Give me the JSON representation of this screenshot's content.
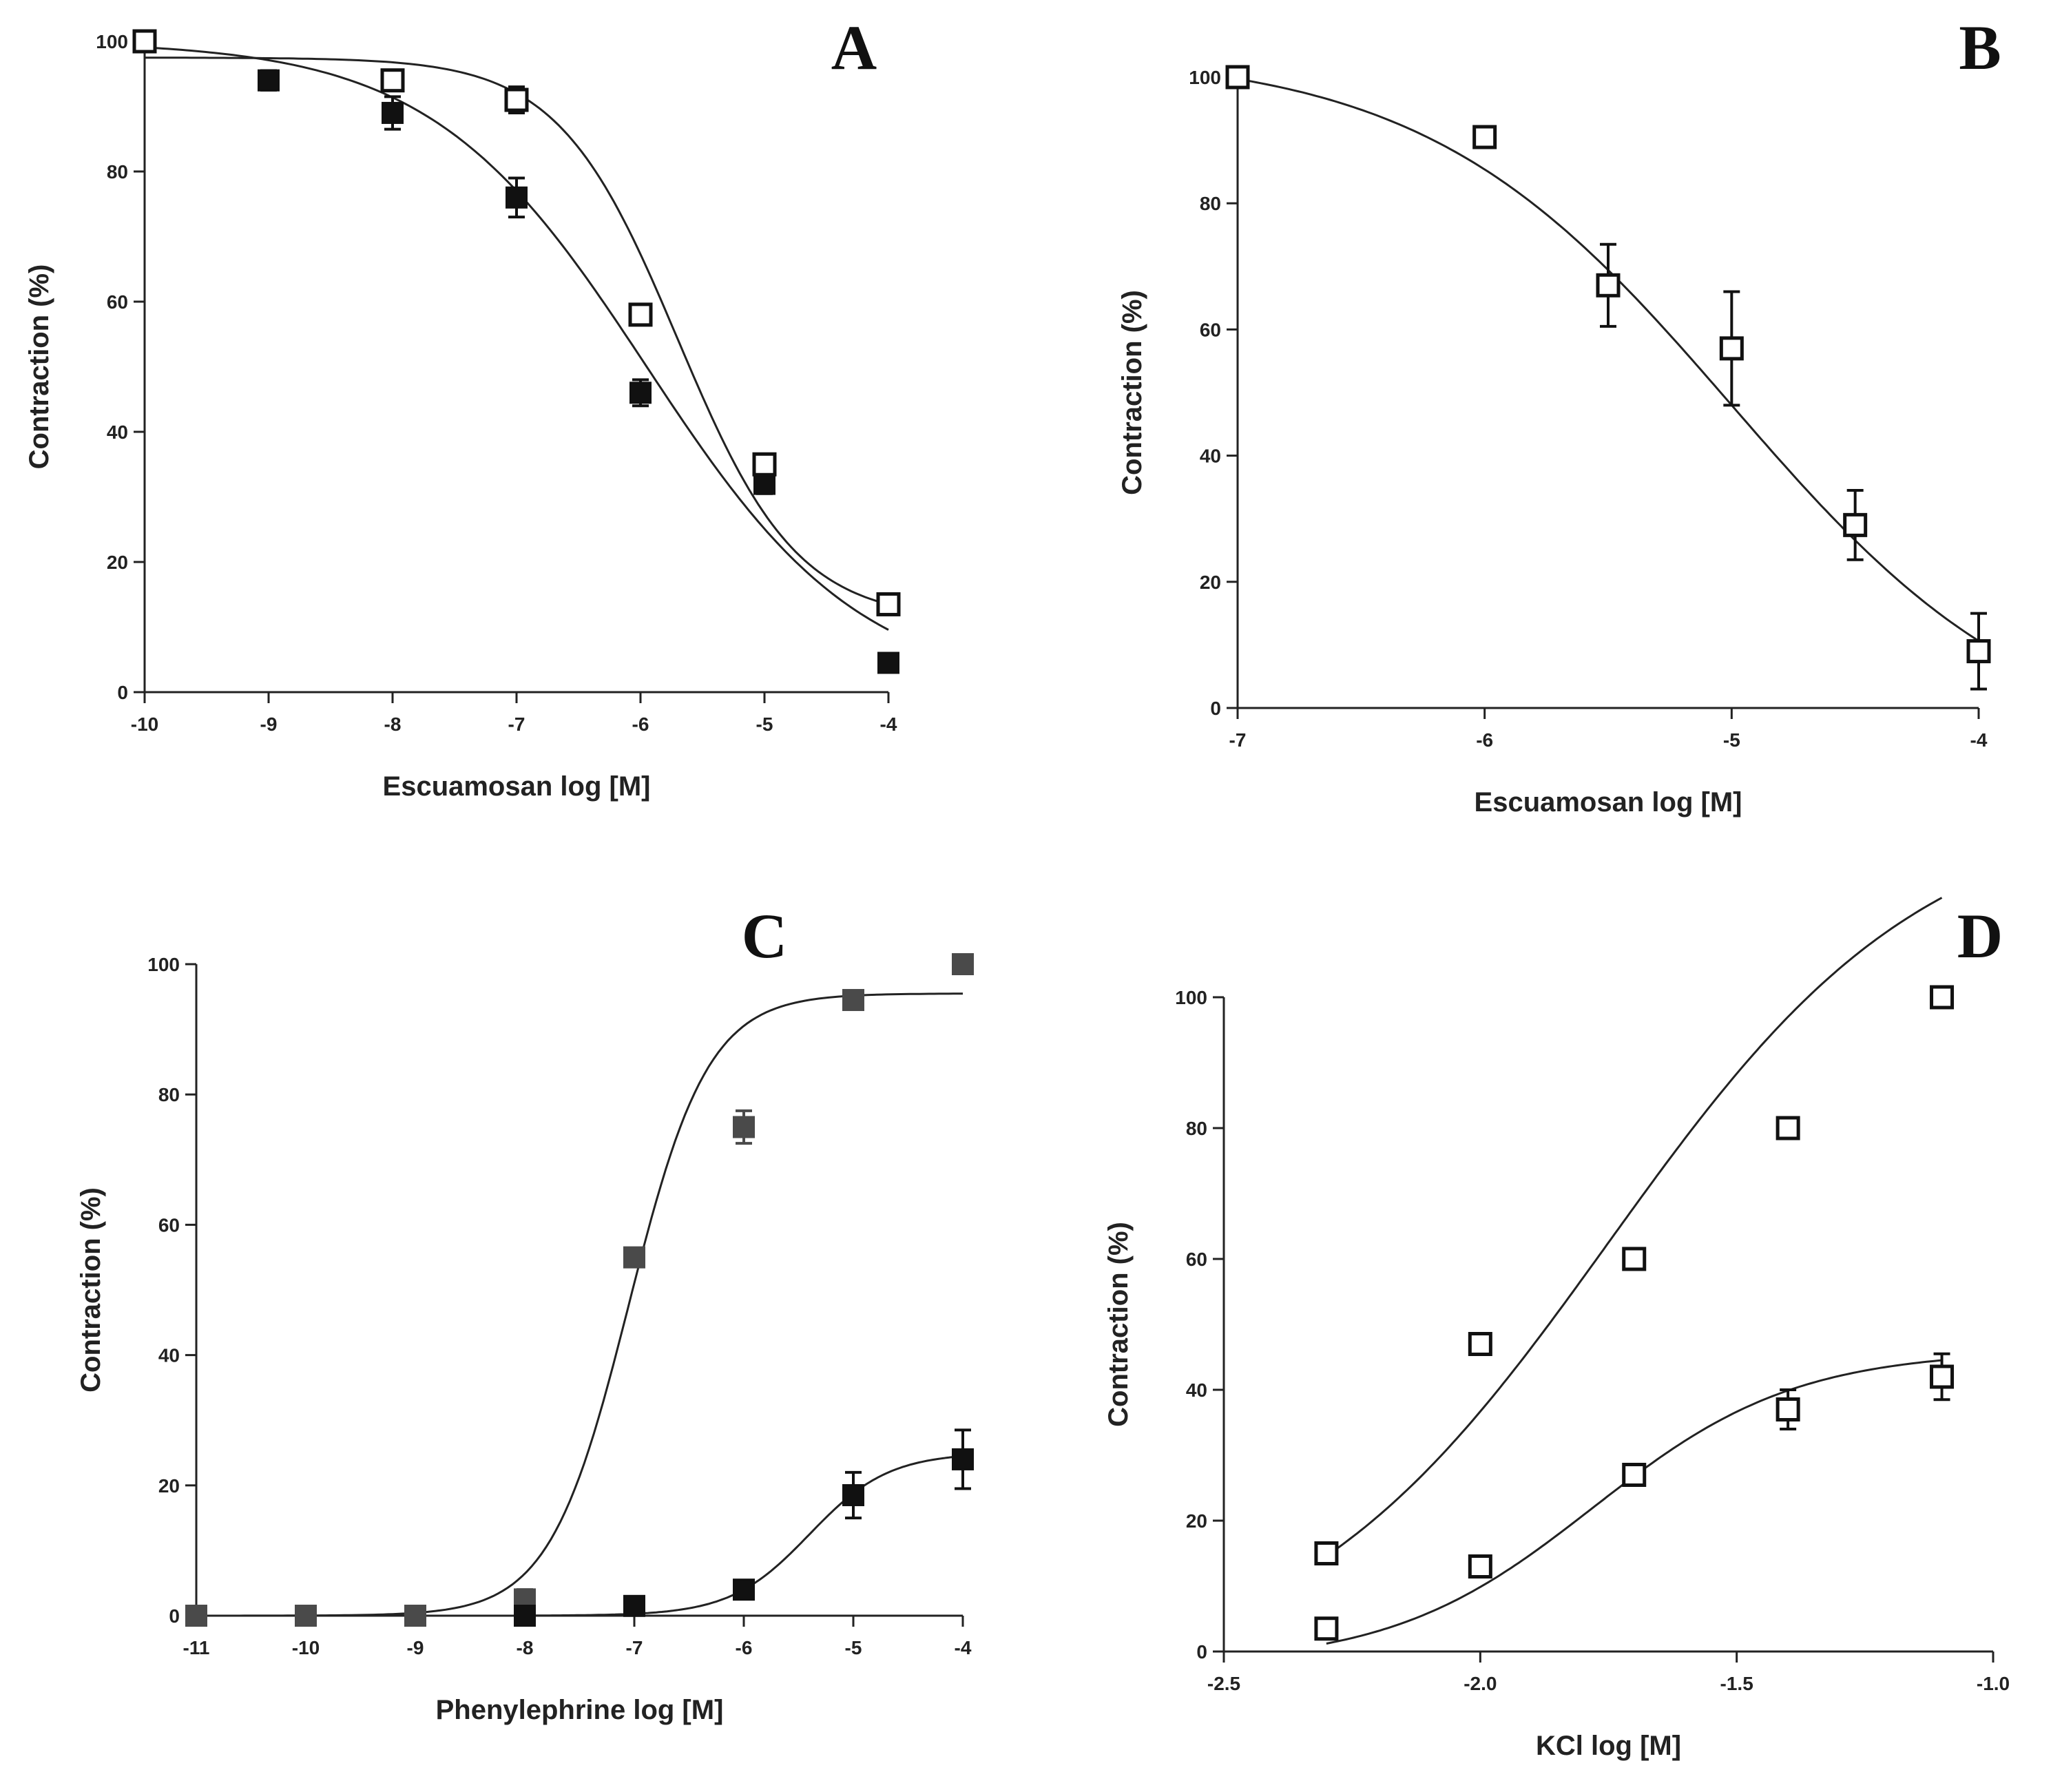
{
  "chart_data": [
    {
      "panel": "A",
      "type": "scatter",
      "xlabel": "Escuamosan log [M]",
      "ylabel": "Contraction (%)",
      "xlim": [
        -10,
        -4
      ],
      "ylim": [
        0,
        100
      ],
      "xticks": [
        -10,
        -9,
        -8,
        -7,
        -6,
        -5,
        -4
      ],
      "yticks": [
        0,
        20,
        40,
        60,
        80,
        100
      ],
      "series": [
        {
          "name": "filled squares",
          "marker": "filled-square",
          "color": "#111111",
          "x": [
            -10,
            -9,
            -8,
            -7,
            -6,
            -5,
            -4
          ],
          "y": [
            100,
            94,
            89,
            76,
            46,
            32,
            4.5
          ],
          "err": [
            0,
            1.5,
            2.5,
            3,
            2,
            1.5,
            0.5
          ],
          "fit": {
            "top": 100,
            "bottom": 0,
            "logEC50": -5.95,
            "hill": -0.5
          }
        },
        {
          "name": "open squares",
          "marker": "open-square",
          "color": "#111111",
          "x": [
            -10,
            -8,
            -7,
            -6,
            -5,
            -4
          ],
          "y": [
            100,
            94,
            91,
            58,
            35,
            13.5
          ],
          "err": [
            0,
            1.5,
            2,
            1.5,
            1.5,
            0.5
          ],
          "fit": {
            "top": 97.5,
            "bottom": 11,
            "logEC50": -5.7,
            "hill": -0.9
          }
        }
      ]
    },
    {
      "panel": "B",
      "type": "scatter",
      "xlabel": "Escuamosan log [M]",
      "ylabel": "Contraction (%)",
      "xlim": [
        -7,
        -4
      ],
      "ylim": [
        0,
        100
      ],
      "xticks": [
        -7,
        -6,
        -5,
        -4
      ],
      "yticks": [
        0,
        20,
        40,
        60,
        80,
        100
      ],
      "series": [
        {
          "name": "open squares",
          "marker": "open-square",
          "color": "#111111",
          "x": [
            -7,
            -6,
            -5.5,
            -5,
            -4.5,
            -4
          ],
          "y": [
            100,
            90.5,
            67,
            57,
            29,
            9
          ],
          "err": [
            0,
            1.5,
            6.5,
            9,
            5.5,
            6
          ],
          "fit": {
            "top": 104,
            "bottom": -8,
            "logEC50": -5.0,
            "hill": -0.7
          }
        }
      ]
    },
    {
      "panel": "C",
      "type": "scatter",
      "xlabel": "Phenylephrine log [M]",
      "ylabel": "Contraction (%)",
      "xlim": [
        -11,
        -4
      ],
      "ylim": [
        0,
        100
      ],
      "xticks": [
        -11,
        -10,
        -9,
        -8,
        -7,
        -6,
        -5,
        -4
      ],
      "yticks": [
        0,
        20,
        40,
        60,
        80,
        100
      ],
      "series": [
        {
          "name": "grey squares",
          "marker": "filled-square",
          "color": "#4a4a4a",
          "x": [
            -11,
            -10,
            -9,
            -8,
            -7,
            -6,
            -5,
            -4
          ],
          "y": [
            0,
            0,
            0,
            2.5,
            55,
            75,
            94.5,
            100
          ],
          "err": [
            0,
            0,
            0,
            1.5,
            0.5,
            2.5,
            0.5,
            0
          ],
          "fit": {
            "top": 95.5,
            "bottom": 0,
            "logEC50": -7.05,
            "hill": 1.2
          }
        },
        {
          "name": "black squares",
          "marker": "filled-square",
          "color": "#111111",
          "x": [
            -8,
            -7,
            -6,
            -5,
            -4
          ],
          "y": [
            0,
            1.5,
            4,
            18.5,
            24
          ],
          "err": [
            0,
            0.5,
            0.5,
            3.5,
            4.5
          ],
          "fit": {
            "top": 25,
            "bottom": 0,
            "logEC50": -5.4,
            "hill": 1.2
          }
        }
      ]
    },
    {
      "panel": "D",
      "type": "scatter",
      "xlabel": "KCl log [M]",
      "ylabel": "Contraction (%)",
      "xlim": [
        -2.5,
        -1.0
      ],
      "ylim": [
        0,
        100
      ],
      "xticks": [
        -2.5,
        -2.0,
        -1.5,
        -1.0
      ],
      "xtick_labels": [
        "-2.5",
        "-2.0",
        "-1.5",
        "-1.0"
      ],
      "yticks": [
        0,
        20,
        40,
        60,
        80,
        100
      ],
      "series": [
        {
          "name": "upper open squares",
          "marker": "open-square",
          "color": "#111111",
          "x": [
            -2.3,
            -2.0,
            -1.7,
            -1.4,
            -1.1
          ],
          "y": [
            15,
            47,
            60,
            80,
            100
          ],
          "err": [
            0,
            1.5,
            1.5,
            1.5,
            0
          ],
          "fit": {
            "top": 130,
            "bottom": -5,
            "logEC50": -1.75,
            "hill": 1.4
          }
        },
        {
          "name": "lower open squares",
          "marker": "open-square",
          "color": "#111111",
          "x": [
            -2.3,
            -2.0,
            -1.7,
            -1.4,
            -1.1
          ],
          "y": [
            3.5,
            13,
            27,
            37,
            42
          ],
          "err": [
            0,
            0.5,
            1.5,
            3,
            3.5
          ],
          "fit": {
            "top": 46,
            "bottom": -2,
            "logEC50": -1.78,
            "hill": 2.2
          }
        }
      ]
    }
  ]
}
